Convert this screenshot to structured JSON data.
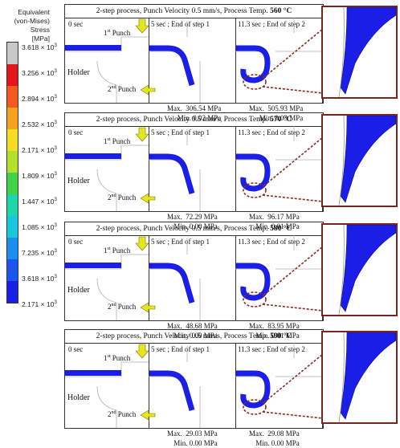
{
  "legend": {
    "title_lines": [
      "Equivalent",
      "(von-Mises) Stress",
      "[MPa]"
    ],
    "ticks": [
      {
        "mantissa": "3.618",
        "exp": "3"
      },
      {
        "mantissa": "3.256",
        "exp": "3"
      },
      {
        "mantissa": "2.894",
        "exp": "3"
      },
      {
        "mantissa": "2.532",
        "exp": "3"
      },
      {
        "mantissa": "2.171",
        "exp": "3"
      },
      {
        "mantissa": "1.809",
        "exp": "3"
      },
      {
        "mantissa": "1.447",
        "exp": "3"
      },
      {
        "mantissa": "1.085",
        "exp": "3"
      },
      {
        "mantissa": "7.235",
        "exp": "3"
      },
      {
        "mantissa": "3.618",
        "exp": "3"
      },
      {
        "mantissa": "2.171",
        "exp": "3"
      }
    ],
    "times_sign": "×",
    "base": "10",
    "colors": [
      "#c8c8c8",
      "#e2161b",
      "#f25a1e",
      "#f7a01e",
      "#f3dc22",
      "#b4e02a",
      "#3fd24a",
      "#1fd6a8",
      "#18c6e0",
      "#1a8ff0",
      "#1a55f0",
      "#1a1ee6"
    ]
  },
  "panels": [
    {
      "title_prefix": "2-step process, Punch Velocity 0.5 mm/s, Process Temp. ",
      "temp": "560 °C",
      "t0": "0 sec",
      "t1": "5 sec ; End of step 1",
      "t2": "11.3 sec ; End of step 2",
      "punch1_num": "1",
      "punch1_sup": "st",
      "punch1_word": " Punch",
      "punch2_num": "2",
      "punch2_sup": "nd",
      "punch2_word": " Punch",
      "holder": "Holder",
      "s1_max_label": "Max.",
      "s1_max": "306.54 MPa",
      "s1_min_label": "Min.",
      "s1_min": "0.02 MPa",
      "s2_max_label": "Max.",
      "s2_max": "505.93 MPa",
      "s2_min_label": "Min.",
      "s2_min": "0.03 MPa"
    },
    {
      "title_prefix": "2-step process, Punch Velocity 0.5 mm/s, Process Temp. ",
      "temp": "570 °C",
      "t0": "0 sec",
      "t1": "5 sec ; End of step 1",
      "t2": "11.3 sec ; End of step 2",
      "punch1_num": "1",
      "punch1_sup": "st",
      "punch1_word": " Punch",
      "punch2_num": "2",
      "punch2_sup": "nd",
      "punch2_word": " Punch",
      "holder": "Holder",
      "s1_max_label": "Max.",
      "s1_max": "72.29 MPa",
      "s1_min_label": "Min.",
      "s1_min": "0.00 MPa",
      "s2_max_label": "Max.",
      "s2_max": "96.17 MPa",
      "s2_min_label": "Min.",
      "s2_min": "0.01 MPa"
    },
    {
      "title_prefix": "2-step process, Punch Velocity 0.5 mm/s, Process Temp. ",
      "temp": "580 °C",
      "t0": "0 sec",
      "t1": "5 sec ; End of step 1",
      "t2": "11.3 sec ; End of step 2",
      "punch1_num": "1",
      "punch1_sup": "st",
      "punch1_word": " Punch",
      "punch2_num": "2",
      "punch2_sup": "nd",
      "punch2_word": " Punch",
      "holder": "Holder",
      "s1_max_label": "Max.",
      "s1_max": "48.68 MPa",
      "s1_min_label": "Min.",
      "s1_min": "0.00 MPa",
      "s2_max_label": "Max.",
      "s2_max": "83.95 MPa",
      "s2_min_label": "Min.",
      "s2_min": "0.01 MPa"
    },
    {
      "title_prefix": "2-step process, Punch Velocity 0.5 mm/s, Process Temp. ",
      "temp": "590 °C",
      "t0": "0 sec",
      "t1": "5 sec ; End of step 1",
      "t2": "11.3 sec ; End of step 2",
      "punch1_num": "1",
      "punch1_sup": "st",
      "punch1_word": " Punch",
      "punch2_num": "2",
      "punch2_sup": "nd",
      "punch2_word": " Punch",
      "holder": "Holder",
      "s1_max_label": "Max.",
      "s1_max": "29.03 MPa",
      "s1_min_label": "Min.",
      "s1_min": "0.00 MPa",
      "s2_max_label": "Max.",
      "s2_max": "29.08 MPa",
      "s2_min_label": "Min.",
      "s2_min": "0.00 MPa"
    }
  ],
  "colors": {
    "workpiece": "#1a1ee6",
    "arrow": "#e6e61e",
    "callout": "#8b2a22",
    "tool_line": "#b0b0b0"
  }
}
